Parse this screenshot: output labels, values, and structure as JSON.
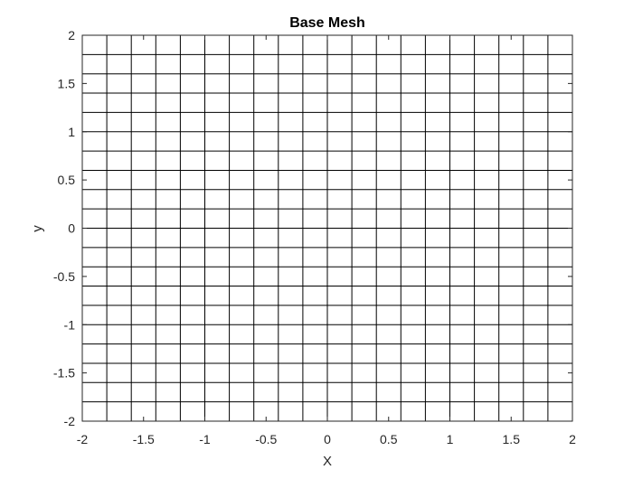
{
  "chart_data": {
    "type": "line",
    "title": "Base Mesh",
    "xlabel": "X",
    "ylabel": "y",
    "xlim": [
      -2,
      2
    ],
    "ylim": [
      -2,
      2
    ],
    "grid": false,
    "mesh": {
      "x_lines": [
        -2,
        -1.8,
        -1.6,
        -1.4,
        -1.2,
        -1,
        -0.8,
        -0.6,
        -0.4,
        -0.2,
        0,
        0.2,
        0.4,
        0.6,
        0.8,
        1,
        1.2,
        1.4,
        1.6,
        1.8,
        2
      ],
      "y_lines": [
        -2,
        -1.8,
        -1.6,
        -1.4,
        -1.2,
        -1,
        -0.8,
        -0.6,
        -0.4,
        -0.2,
        0,
        0.2,
        0.4,
        0.6,
        0.8,
        1,
        1.2,
        1.4,
        1.6,
        1.8,
        2
      ]
    },
    "xticks": [
      -2,
      -1.5,
      -1,
      -0.5,
      0,
      0.5,
      1,
      1.5,
      2
    ],
    "xtick_labels": [
      "-2",
      "-1.5",
      "-1",
      "-0.5",
      "0",
      "0.5",
      "1",
      "1.5",
      "2"
    ],
    "yticks": [
      -2,
      -1.5,
      -1,
      -0.5,
      0,
      0.5,
      1,
      1.5,
      2
    ],
    "ytick_labels": [
      "-2",
      "-1.5",
      "-1",
      "-0.5",
      "0",
      "0.5",
      "1",
      "1.5",
      "2"
    ],
    "line_color": "#000000"
  }
}
